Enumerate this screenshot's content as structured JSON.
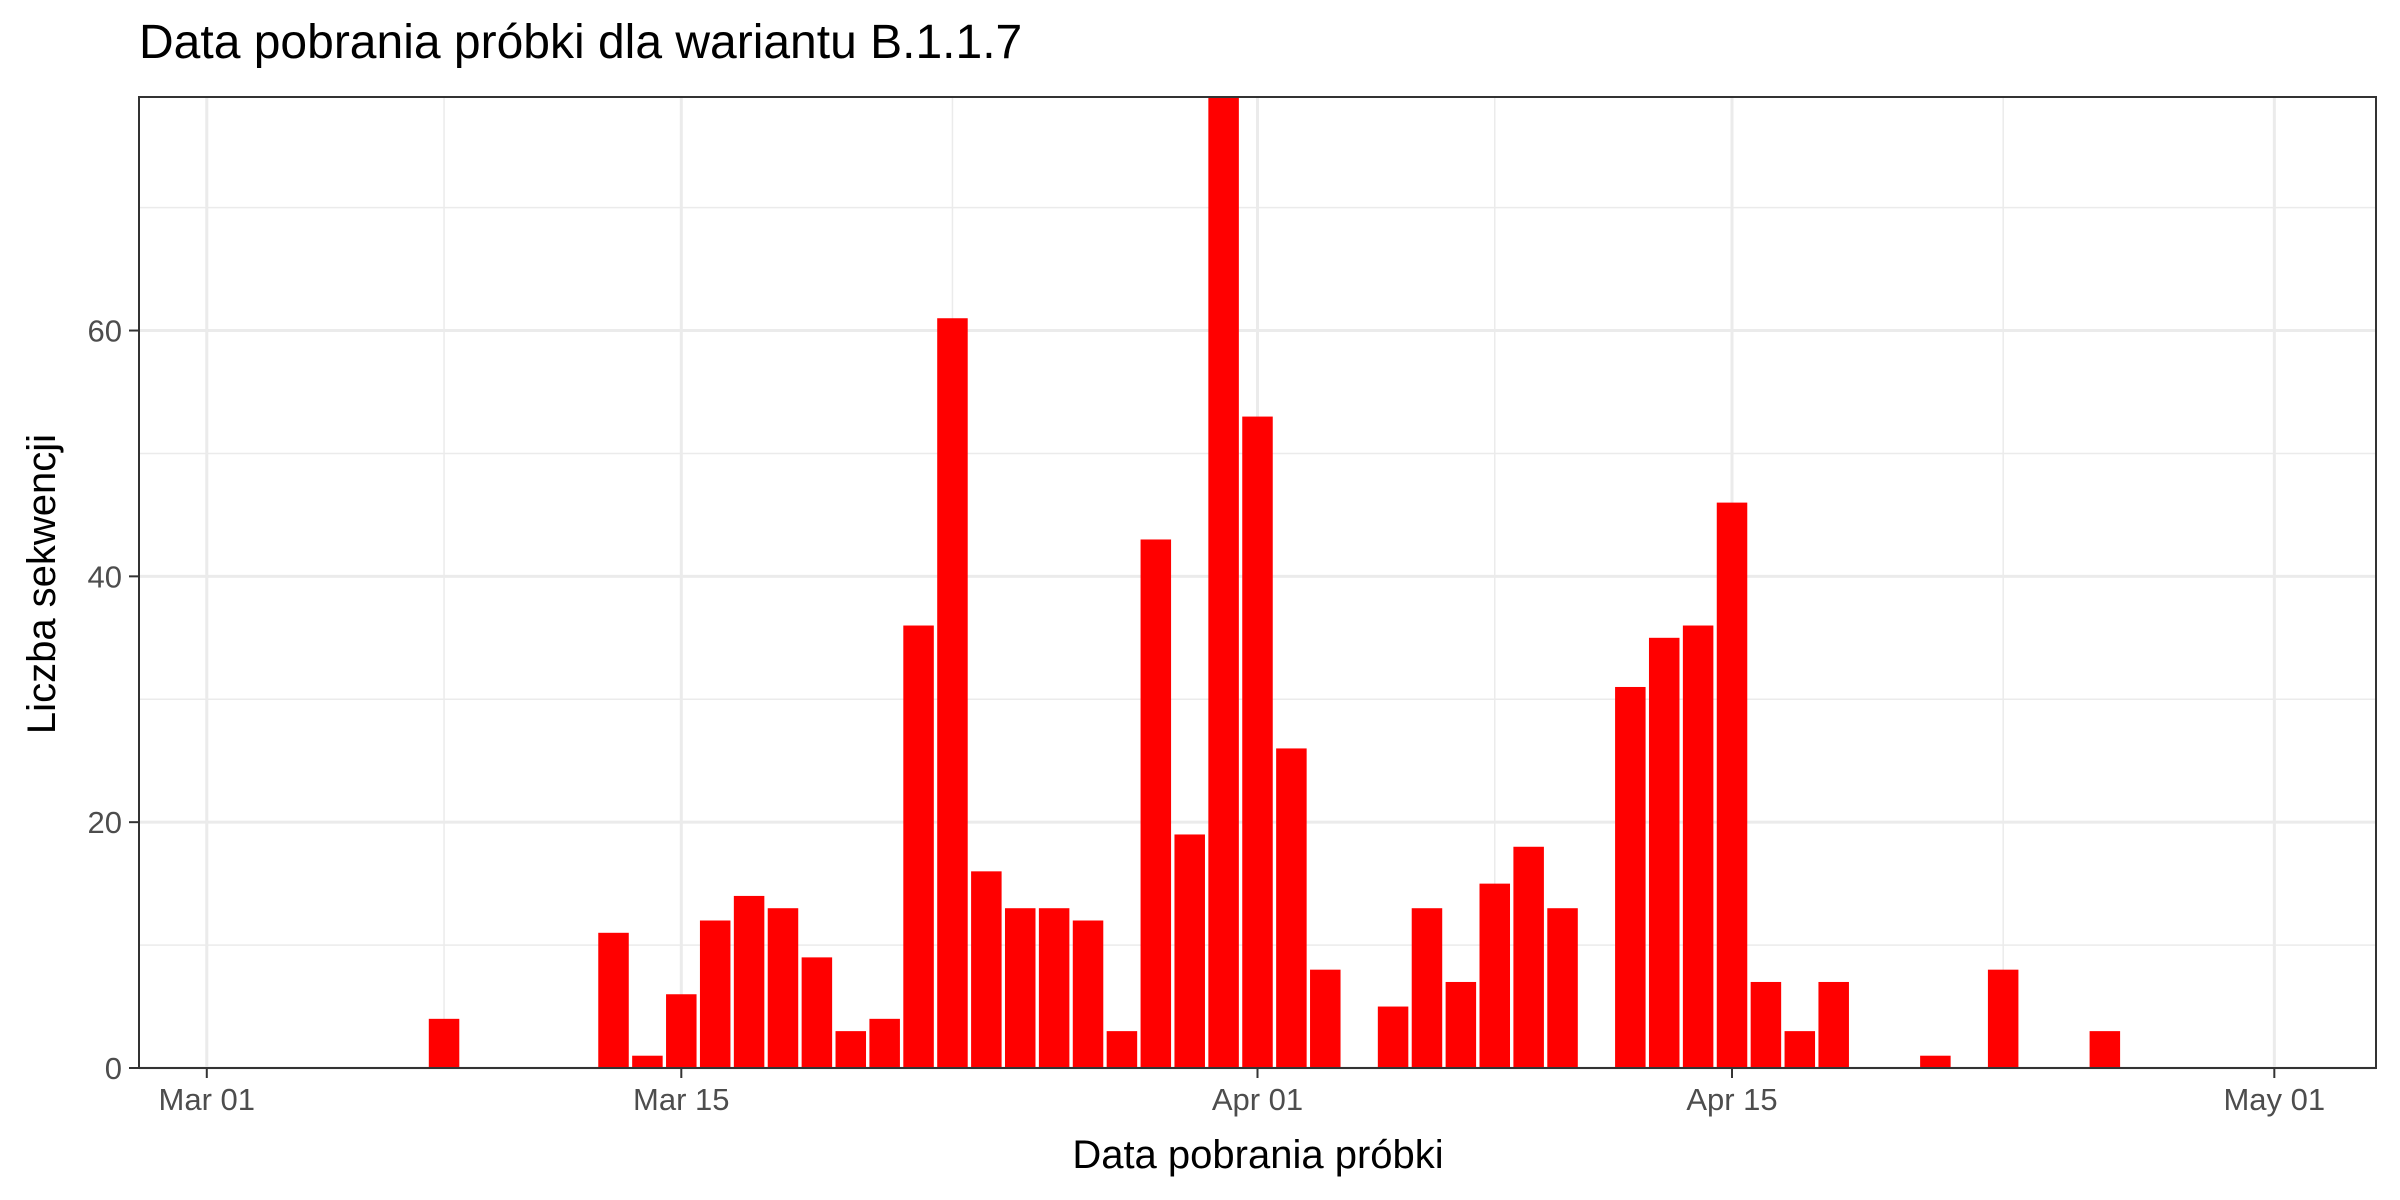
{
  "chart_data": {
    "type": "bar",
    "title": "Data pobrania próbki dla wariantu B.1.1.7",
    "xlabel": "Data pobrania próbki",
    "ylabel": "Liczba sekwencji",
    "bar_color": "#ff0000",
    "ylim": [
      0,
      79
    ],
    "xlim": [
      "2021-02-27",
      "2021-05-04"
    ],
    "grid": true,
    "x_ticks": [
      {
        "date": "2021-03-01",
        "label": "Mar 01"
      },
      {
        "date": "2021-03-15",
        "label": "Mar 15"
      },
      {
        "date": "2021-04-01",
        "label": "Apr 01"
      },
      {
        "date": "2021-04-15",
        "label": "Apr 15"
      },
      {
        "date": "2021-05-01",
        "label": "May 01"
      }
    ],
    "y_ticks": [
      {
        "value": 0,
        "label": "0"
      },
      {
        "value": 20,
        "label": "20"
      },
      {
        "value": 40,
        "label": "40"
      },
      {
        "value": 60,
        "label": "60"
      }
    ],
    "x": [
      "2021-03-08",
      "2021-03-13",
      "2021-03-14",
      "2021-03-15",
      "2021-03-16",
      "2021-03-17",
      "2021-03-18",
      "2021-03-19",
      "2021-03-20",
      "2021-03-21",
      "2021-03-22",
      "2021-03-23",
      "2021-03-24",
      "2021-03-25",
      "2021-03-26",
      "2021-03-27",
      "2021-03-28",
      "2021-03-29",
      "2021-03-30",
      "2021-03-31",
      "2021-04-01",
      "2021-04-02",
      "2021-04-03",
      "2021-04-05",
      "2021-04-06",
      "2021-04-07",
      "2021-04-08",
      "2021-04-09",
      "2021-04-10",
      "2021-04-12",
      "2021-04-13",
      "2021-04-14",
      "2021-04-15",
      "2021-04-16",
      "2021-04-17",
      "2021-04-18",
      "2021-04-21",
      "2021-04-23",
      "2021-04-26"
    ],
    "values": [
      4,
      11,
      1,
      6,
      12,
      14,
      13,
      9,
      3,
      4,
      36,
      61,
      16,
      13,
      13,
      12,
      3,
      43,
      19,
      79,
      53,
      26,
      8,
      5,
      13,
      7,
      15,
      18,
      13,
      31,
      35,
      36,
      46,
      7,
      3,
      7,
      1,
      8,
      3
    ]
  }
}
